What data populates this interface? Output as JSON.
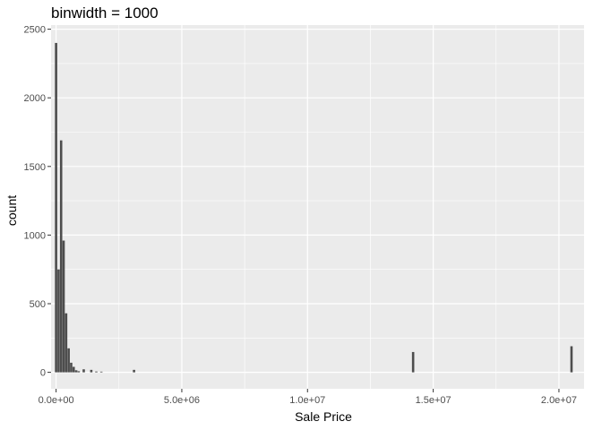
{
  "chart_data": {
    "type": "bar",
    "title": "binwidth = 1000",
    "xlabel": "Sale Price",
    "ylabel": "count",
    "xlim": [
      -200000,
      21000000
    ],
    "ylim": [
      -120,
      2530
    ],
    "x_ticks": [
      0,
      5000000,
      10000000,
      15000000,
      20000000
    ],
    "x_tick_labels": [
      "0.0e+00",
      "5.0e+06",
      "1.0e+07",
      "1.5e+07",
      "2.0e+07"
    ],
    "y_ticks": [
      0,
      500,
      1000,
      1500,
      2000,
      2500
    ],
    "y_tick_labels": [
      "0",
      "500",
      "1000",
      "1500",
      "2000",
      "2500"
    ],
    "grid": true,
    "bar_color": "#4d4d4d",
    "panel_color": "#ebebeb",
    "grid_color": "#ffffff",
    "bins": [
      {
        "x": 0,
        "count": 2400
      },
      {
        "x": 100000,
        "count": 750
      },
      {
        "x": 200000,
        "count": 1690
      },
      {
        "x": 300000,
        "count": 960
      },
      {
        "x": 400000,
        "count": 430
      },
      {
        "x": 500000,
        "count": 175
      },
      {
        "x": 600000,
        "count": 70
      },
      {
        "x": 700000,
        "count": 40
      },
      {
        "x": 800000,
        "count": 15
      },
      {
        "x": 900000,
        "count": 8
      },
      {
        "x": 1100000,
        "count": 22
      },
      {
        "x": 1400000,
        "count": 18
      },
      {
        "x": 1600000,
        "count": 6
      },
      {
        "x": 1800000,
        "count": 5
      },
      {
        "x": 3100000,
        "count": 18
      },
      {
        "x": 14200000,
        "count": 148
      },
      {
        "x": 20500000,
        "count": 190
      }
    ]
  }
}
